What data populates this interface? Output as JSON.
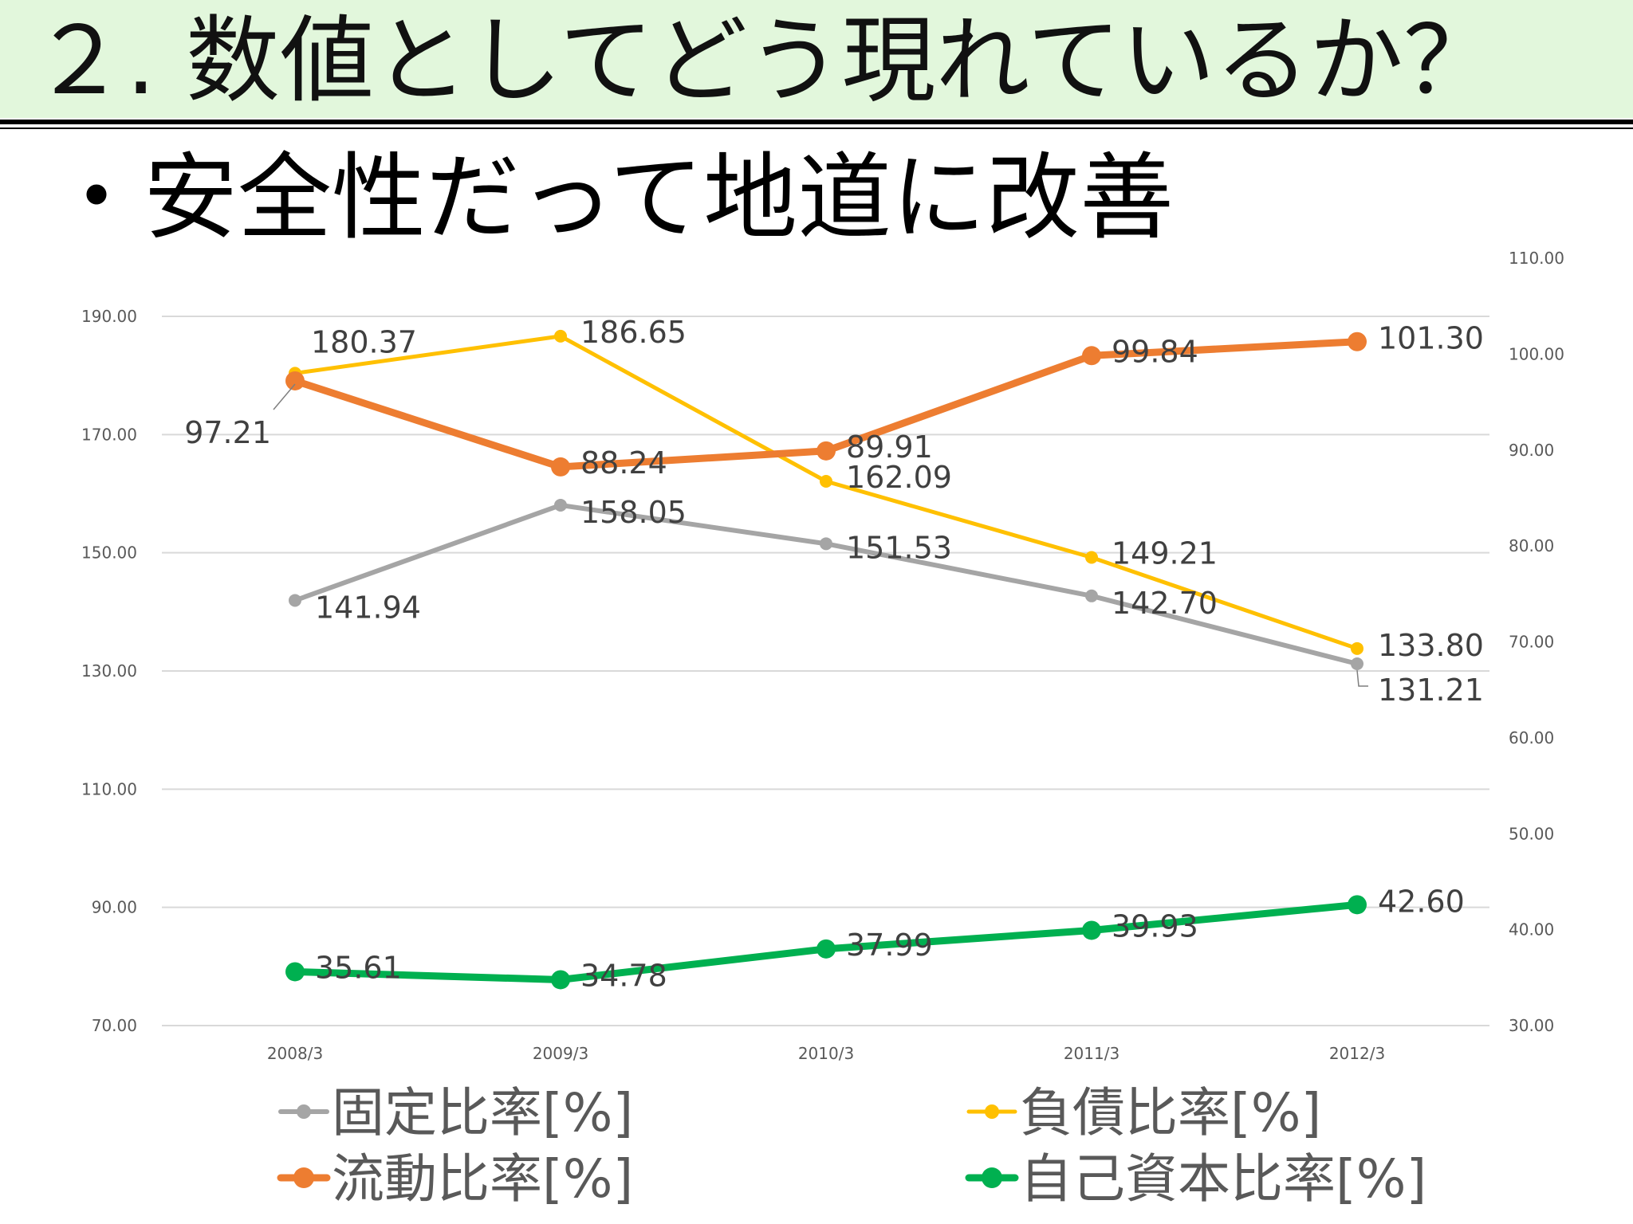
{
  "slide": {
    "title": "２. 数値としてどう現れているか？",
    "bullet_mark": "・",
    "bullet_text": "安全性だって地道に改善"
  },
  "chart_data": {
    "type": "line",
    "categories": [
      "2008/3",
      "2009/3",
      "2010/3",
      "2011/3",
      "2012/3"
    ],
    "y_left": {
      "ticks": [
        "190.00",
        "170.00",
        "150.00",
        "130.00",
        "110.00",
        "90.00",
        "70.00"
      ],
      "ylim": [
        70,
        190
      ]
    },
    "y_right": {
      "ticks": [
        "110.00",
        "100.00",
        "90.00",
        "80.00",
        "70.00",
        "60.00",
        "50.00",
        "40.00",
        "30.00"
      ],
      "ylim": [
        30,
        110
      ]
    },
    "grid": true,
    "legend_position": "bottom",
    "series": [
      {
        "name": "固定比率[%]",
        "axis": "left",
        "color": "#a5a5a5",
        "values": [
          141.94,
          158.05,
          151.53,
          142.7,
          131.21
        ],
        "labels": [
          "141.94",
          "158.05",
          "151.53",
          "142.70",
          "131.21"
        ]
      },
      {
        "name": "負債比率[%]",
        "axis": "left",
        "color": "#ffc000",
        "values": [
          180.37,
          186.65,
          162.09,
          149.21,
          133.8
        ],
        "labels": [
          "180.37",
          "186.65",
          "162.09",
          "149.21",
          "133.80"
        ]
      },
      {
        "name": "流動比率[%]",
        "axis": "right",
        "color": "#ed7d31",
        "values": [
          97.21,
          88.24,
          89.91,
          99.84,
          101.3
        ],
        "labels": [
          "97.21",
          "88.24",
          "89.91",
          "99.84",
          "101.30"
        ]
      },
      {
        "name": "自己資本比率[%]",
        "axis": "right",
        "color": "#00b050",
        "values": [
          35.61,
          34.78,
          37.99,
          39.93,
          42.6
        ],
        "labels": [
          "35.61",
          "34.78",
          "37.99",
          "39.93",
          "42.60"
        ]
      }
    ]
  }
}
